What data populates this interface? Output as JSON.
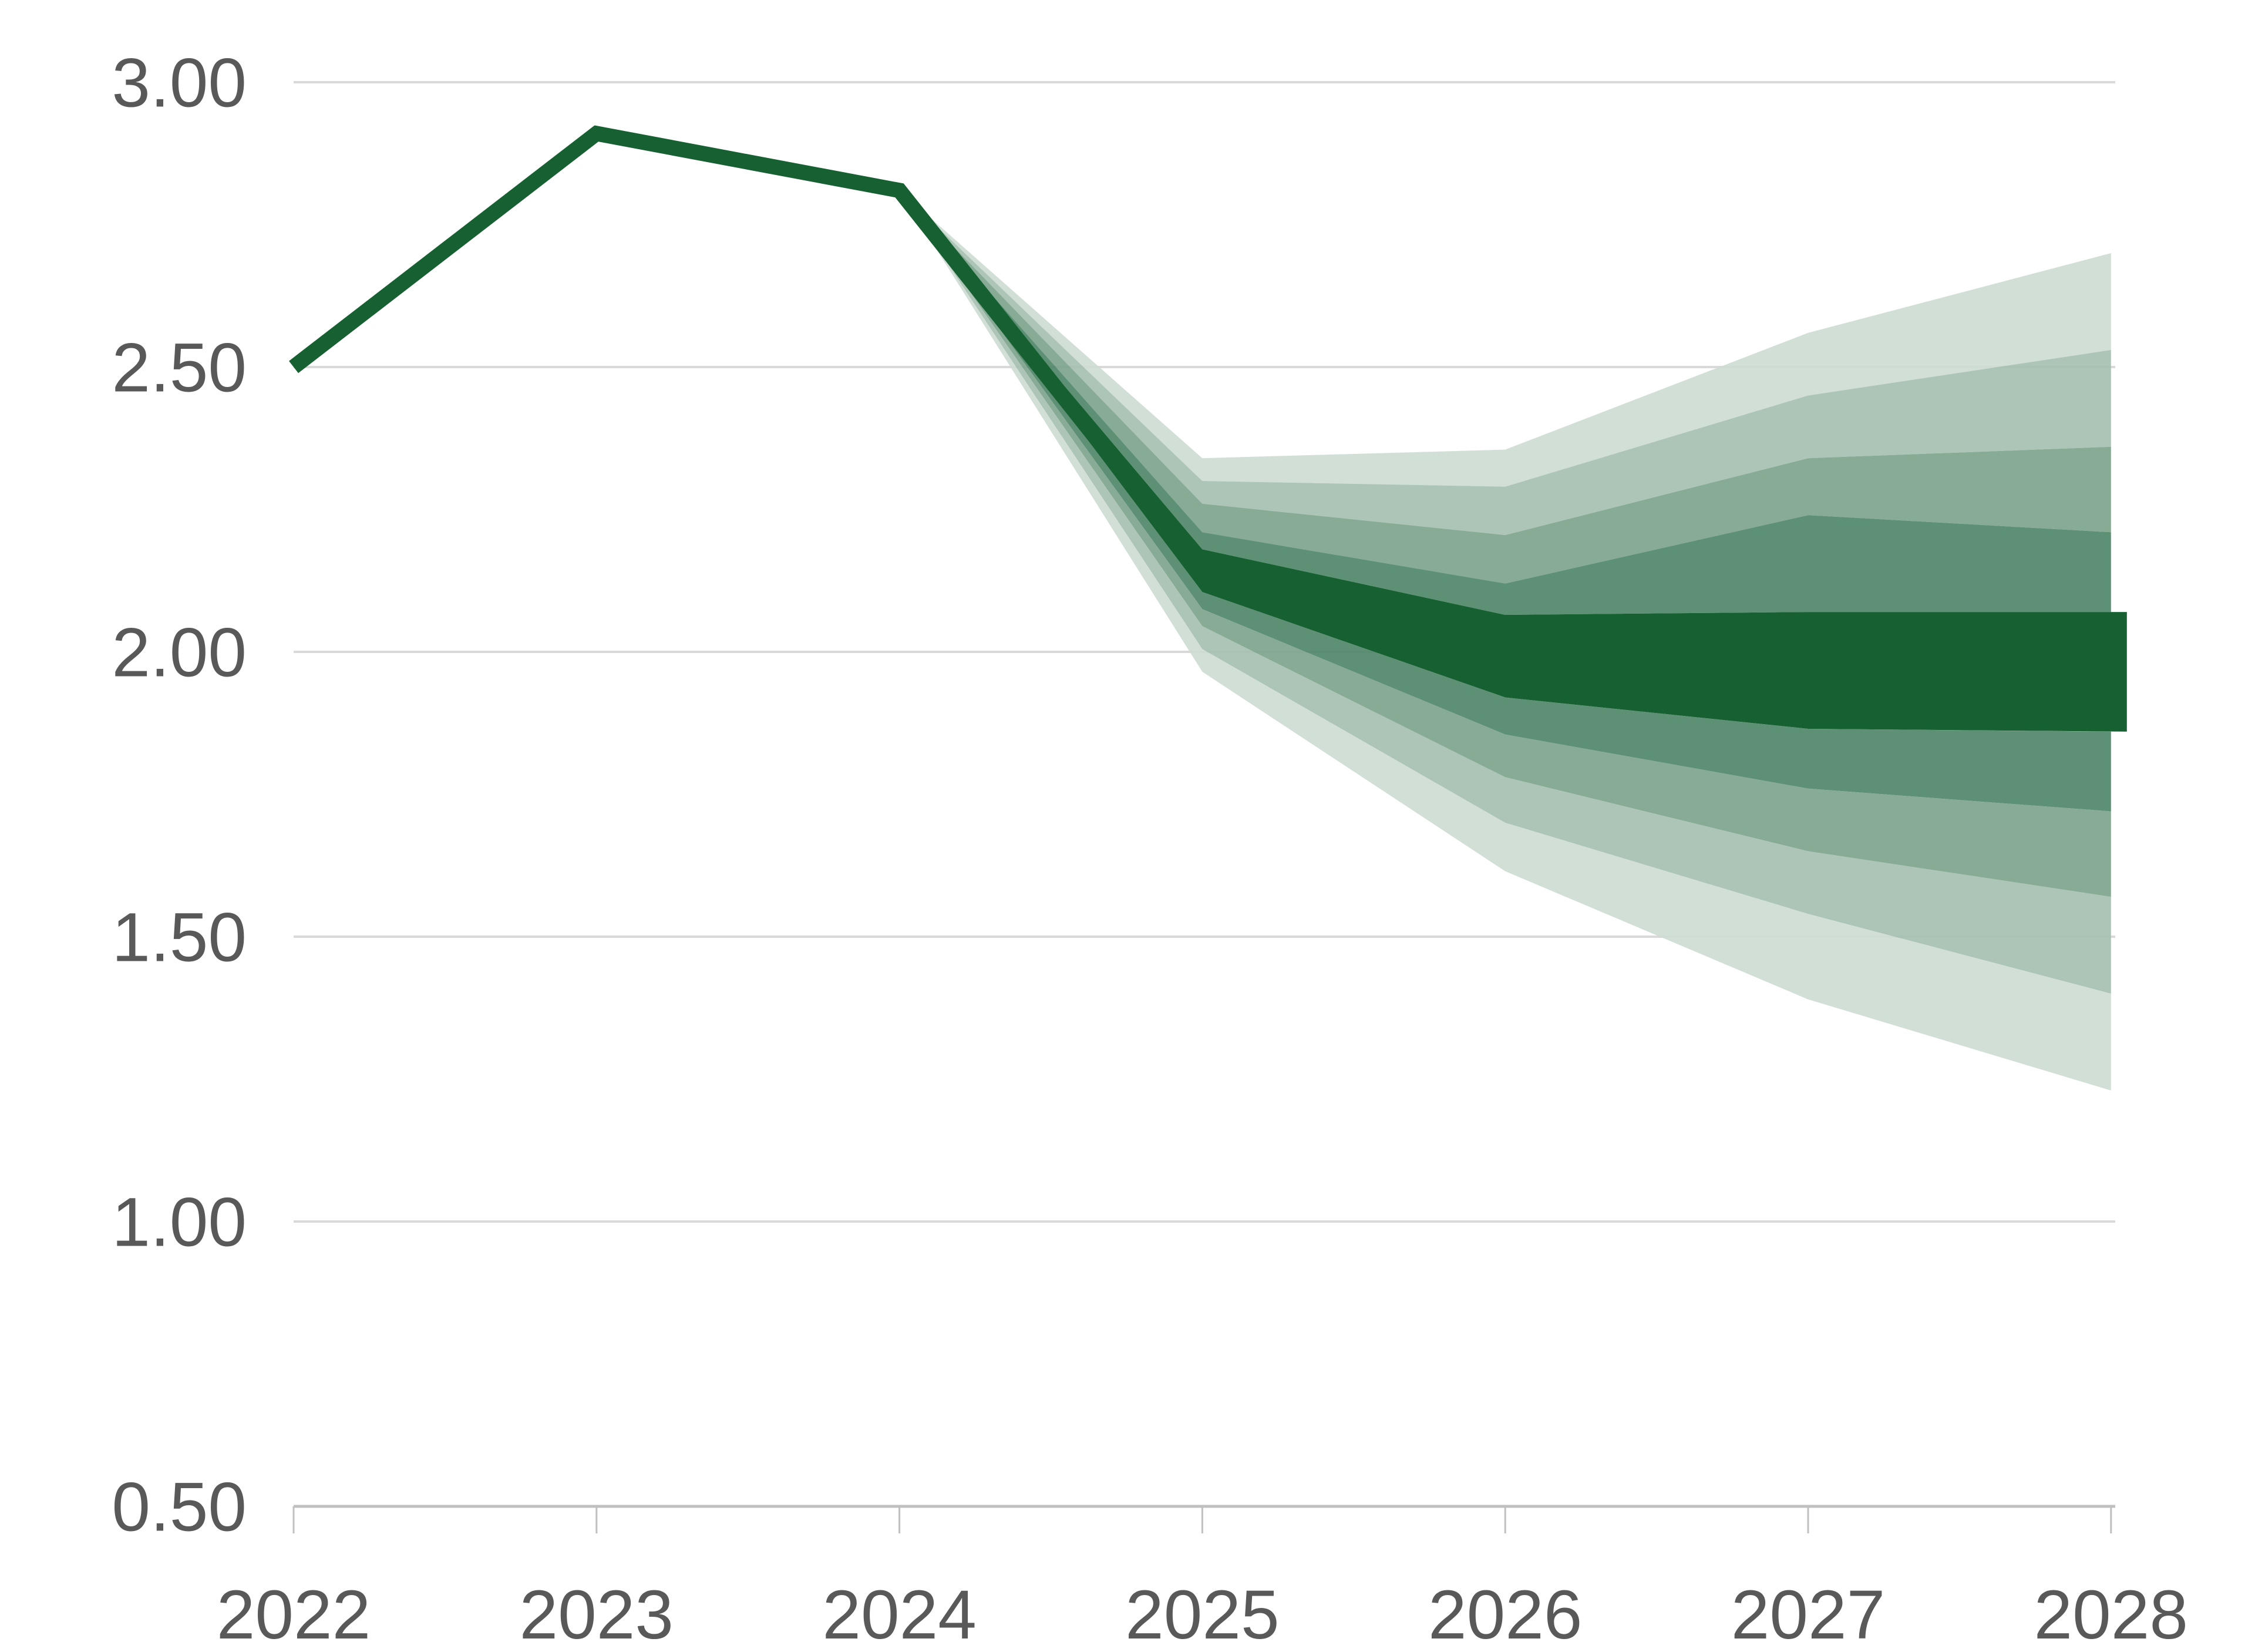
{
  "chart_data": {
    "type": "line",
    "subtype": "fan-chart-with-confidence-bands",
    "title": "",
    "xlabel": "",
    "ylabel": "",
    "grid": true,
    "legend_position": "none",
    "x_labels": [
      "2022",
      "2023",
      "2024",
      "2025",
      "2026",
      "2027",
      "2028"
    ],
    "x_values": [
      2022,
      2023,
      2024,
      2025,
      2026,
      2027,
      2028
    ],
    "ylim": [
      0.5,
      3.0
    ],
    "y_ticks": [
      {
        "value": 3.0,
        "label": "3.00"
      },
      {
        "value": 2.5,
        "label": "2.50"
      },
      {
        "value": 2.0,
        "label": "2.00"
      },
      {
        "value": 1.5,
        "label": "1.50"
      },
      {
        "value": 1.0,
        "label": "1.00"
      },
      {
        "value": 0.5,
        "label": "0.50"
      }
    ],
    "series": [
      {
        "name": "central-estimate-line",
        "values": [
          2.5,
          2.91,
          2.81,
          2.14,
          1.99,
          1.97,
          1.97
        ],
        "solid_line_through_x": 2025,
        "color": "#176032",
        "stroke_width": 26
      }
    ],
    "fan": {
      "apex": {
        "x": 2024,
        "value": 2.81
      },
      "years": [
        2025,
        2026,
        2027,
        2028
      ],
      "boundaries_top_to_bottom": [
        {
          "year": 2025,
          "levels": [
            2.34,
            2.3,
            2.26,
            2.21,
            2.18,
            2.105,
            2.075,
            2.045,
            2.005,
            1.965
          ]
        },
        {
          "year": 2026,
          "levels": [
            2.355,
            2.29,
            2.205,
            2.12,
            2.065,
            1.92,
            1.855,
            1.78,
            1.7,
            1.615
          ]
        },
        {
          "year": 2027,
          "levels": [
            2.56,
            2.45,
            2.34,
            2.24,
            2.07,
            1.865,
            1.76,
            1.65,
            1.54,
            1.39
          ]
        },
        {
          "year": 2028,
          "levels": [
            2.7,
            2.53,
            2.36,
            2.21,
            2.07,
            1.86,
            1.72,
            1.57,
            1.4,
            1.23
          ]
        }
      ],
      "band_colors_top_to_bottom": [
        "#ccdbd1",
        "#a4bfae",
        "#7aa28a",
        "#4c8466",
        "#176032",
        "#4c8466",
        "#7aa28a",
        "#a4bfae",
        "#ccdbd1"
      ],
      "central_band_index": 4
    },
    "colors": {
      "line": "#176032",
      "gridline": "#d9d9d9",
      "axis_line": "#c0c0c0",
      "tick": "#c0c0c0",
      "label_text": "#595959",
      "background": "#ffffff"
    }
  },
  "layout_labels": {
    "chart_description": "Fan chart: dark green historical line 2022-2024 peaking in 2023, declining sharply into widening green confidence bands for 2025-2028"
  }
}
